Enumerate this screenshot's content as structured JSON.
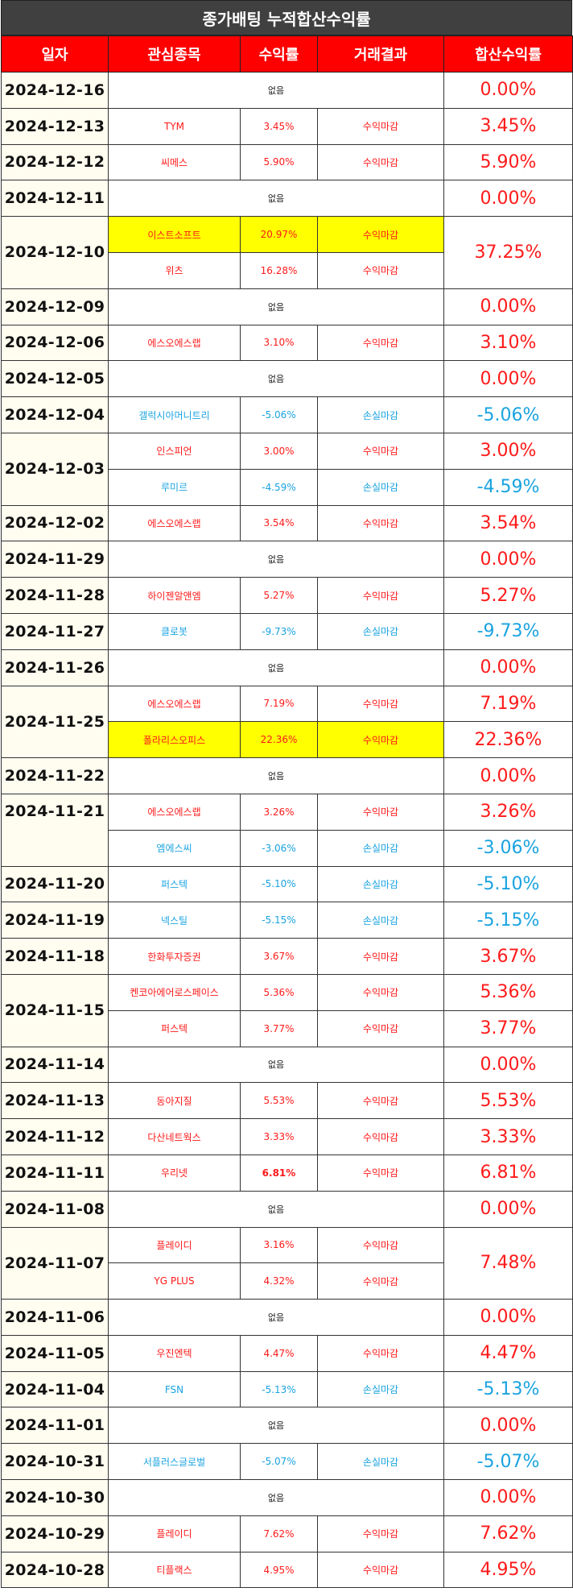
{
  "title": "종가배팅 누적합산수익률",
  "headers": [
    "일자",
    "관심종목",
    "수익률",
    "거래결과",
    "합산수익률"
  ],
  "none_label": "없음",
  "groups": [
    {
      "date": "2024-12-16",
      "total": "0.00%",
      "total_tone": "red",
      "trades": []
    },
    {
      "date": "2024-12-13",
      "total": "3.45%",
      "total_tone": "red",
      "trades": [
        {
          "stock": "TYM",
          "ret": "3.45%",
          "result": "수익마감",
          "tone": "red"
        }
      ]
    },
    {
      "date": "2024-12-12",
      "total": "5.90%",
      "total_tone": "red",
      "trades": [
        {
          "stock": "씨메스",
          "ret": "5.90%",
          "result": "수익마감",
          "tone": "red"
        }
      ]
    },
    {
      "date": "2024-12-11",
      "total": "0.00%",
      "total_tone": "red",
      "trades": []
    },
    {
      "date": "2024-12-10",
      "total": "37.25%",
      "total_tone": "red",
      "trades": [
        {
          "stock": "이스트소프트",
          "ret": "20.97%",
          "result": "수익마감",
          "tone": "red",
          "highlight": true
        },
        {
          "stock": "위츠",
          "ret": "16.28%",
          "result": "수익마감",
          "tone": "red"
        }
      ]
    },
    {
      "date": "2024-12-09",
      "total": "0.00%",
      "total_tone": "red",
      "trades": []
    },
    {
      "date": "2024-12-06",
      "total": "3.10%",
      "total_tone": "red",
      "trades": [
        {
          "stock": "에스오에스랩",
          "ret": "3.10%",
          "result": "수익마감",
          "tone": "red"
        }
      ]
    },
    {
      "date": "2024-12-05",
      "total": "0.00%",
      "total_tone": "red",
      "trades": []
    },
    {
      "date": "2024-12-04",
      "total": "-5.06%",
      "total_tone": "blue",
      "trades": [
        {
          "stock": "갤럭시아머니트리",
          "ret": "-5.06%",
          "result": "손실마감",
          "tone": "blue"
        }
      ]
    },
    {
      "date": "2024-12-03",
      "trades": [
        {
          "stock": "인스피언",
          "ret": "3.00%",
          "result": "수익마감",
          "tone": "red",
          "total": "3.00%"
        },
        {
          "stock": "루미르",
          "ret": "-4.59%",
          "result": "손실마감",
          "tone": "blue",
          "total": "-4.59%"
        }
      ]
    },
    {
      "date": "2024-12-02",
      "total": "3.54%",
      "total_tone": "red",
      "trades": [
        {
          "stock": "에스오에스랩",
          "ret": "3.54%",
          "result": "수익마감",
          "tone": "red"
        }
      ]
    },
    {
      "date": "2024-11-29",
      "total": "0.00%",
      "total_tone": "red",
      "trades": []
    },
    {
      "date": "2024-11-28",
      "total": "5.27%",
      "total_tone": "red",
      "trades": [
        {
          "stock": "하이젠알앤엠",
          "ret": "5.27%",
          "result": "수익마감",
          "tone": "red"
        }
      ]
    },
    {
      "date": "2024-11-27",
      "total": "-9.73%",
      "total_tone": "blue",
      "trades": [
        {
          "stock": "클로봇",
          "ret": "-9.73%",
          "result": "손실마감",
          "tone": "blue"
        }
      ]
    },
    {
      "date": "2024-11-26",
      "total": "0.00%",
      "total_tone": "red",
      "trades": []
    },
    {
      "date": "2024-11-25",
      "trades": [
        {
          "stock": "에스오에스랩",
          "ret": "7.19%",
          "result": "수익마감",
          "tone": "red",
          "total": "7.19%"
        },
        {
          "stock": "폴라리스오피스",
          "ret": "22.36%",
          "result": "수익마감",
          "tone": "red",
          "total": "22.36%",
          "highlight": true
        }
      ]
    },
    {
      "date": "2024-11-22",
      "total": "0.00%",
      "total_tone": "red",
      "trades": []
    },
    {
      "date": "2024-11-21",
      "date_top": true,
      "trades": [
        {
          "stock": "에스오에스랩",
          "ret": "3.26%",
          "result": "수익마감",
          "tone": "red",
          "total": "3.26%"
        },
        {
          "stock": "엠에스씨",
          "ret": "-3.06%",
          "result": "손실마감",
          "tone": "blue",
          "total": "-3.06%"
        }
      ]
    },
    {
      "date": "2024-11-20",
      "total": "-5.10%",
      "total_tone": "blue",
      "trades": [
        {
          "stock": "퍼스텍",
          "ret": "-5.10%",
          "result": "손실마감",
          "tone": "blue"
        }
      ]
    },
    {
      "date": "2024-11-19",
      "total": "-5.15%",
      "total_tone": "blue",
      "trades": [
        {
          "stock": "넥스틸",
          "ret": "-5.15%",
          "result": "손실마감",
          "tone": "blue"
        }
      ]
    },
    {
      "date": "2024-11-18",
      "total": "3.67%",
      "total_tone": "red",
      "trades": [
        {
          "stock": "한화투자증권",
          "ret": "3.67%",
          "result": "수익마감",
          "tone": "red"
        }
      ]
    },
    {
      "date": "2024-11-15",
      "trades": [
        {
          "stock": "켄코아에어로스페이스",
          "ret": "5.36%",
          "result": "수익마감",
          "tone": "red",
          "total": "5.36%"
        },
        {
          "stock": "퍼스텍",
          "ret": "3.77%",
          "result": "수익마감",
          "tone": "red",
          "total": "3.77%"
        }
      ]
    },
    {
      "date": "2024-11-14",
      "total": "0.00%",
      "total_tone": "red",
      "trades": []
    },
    {
      "date": "2024-11-13",
      "total": "5.53%",
      "total_tone": "red",
      "trades": [
        {
          "stock": "동아지질",
          "ret": "5.53%",
          "result": "수익마감",
          "tone": "red"
        }
      ]
    },
    {
      "date": "2024-11-12",
      "total": "3.33%",
      "total_tone": "red",
      "trades": [
        {
          "stock": "다산네트웍스",
          "ret": "3.33%",
          "result": "수익마감",
          "tone": "red"
        }
      ]
    },
    {
      "date": "2024-11-11",
      "total": "6.81%",
      "total_tone": "red",
      "trades": [
        {
          "stock": "우리넷",
          "ret": "6.81%",
          "result": "수익마감",
          "tone": "red",
          "bold": true
        }
      ]
    },
    {
      "date": "2024-11-08",
      "total": "0.00%",
      "total_tone": "red",
      "trades": []
    },
    {
      "date": "2024-11-07",
      "total": "7.48%",
      "total_tone": "red",
      "trades": [
        {
          "stock": "플레이디",
          "ret": "3.16%",
          "result": "수익마감",
          "tone": "red"
        },
        {
          "stock": "YG PLUS",
          "ret": "4.32%",
          "result": "수익마감",
          "tone": "red"
        }
      ]
    },
    {
      "date": "2024-11-06",
      "total": "0.00%",
      "total_tone": "red",
      "trades": []
    },
    {
      "date": "2024-11-05",
      "total": "4.47%",
      "total_tone": "red",
      "trades": [
        {
          "stock": "우진엔텍",
          "ret": "4.47%",
          "result": "수익마감",
          "tone": "red"
        }
      ]
    },
    {
      "date": "2024-11-04",
      "total": "-5.13%",
      "total_tone": "blue",
      "trades": [
        {
          "stock": "FSN",
          "ret": "-5.13%",
          "result": "손실마감",
          "tone": "blue"
        }
      ]
    },
    {
      "date": "2024-11-01",
      "total": "0.00%",
      "total_tone": "red",
      "trades": []
    },
    {
      "date": "2024-10-31",
      "total": "-5.07%",
      "total_tone": "blue",
      "trades": [
        {
          "stock": "서플러스글로벌",
          "ret": "-5.07%",
          "result": "손실마감",
          "tone": "blue"
        }
      ]
    },
    {
      "date": "2024-10-30",
      "total": "0.00%",
      "total_tone": "red",
      "trades": []
    },
    {
      "date": "2024-10-29",
      "total": "7.62%",
      "total_tone": "red",
      "trades": [
        {
          "stock": "플레이디",
          "ret": "7.62%",
          "result": "수익마감",
          "tone": "red"
        }
      ]
    },
    {
      "date": "2024-10-28",
      "total": "4.95%",
      "total_tone": "red",
      "trades": [
        {
          "stock": "티플랙스",
          "ret": "4.95%",
          "result": "수익마감",
          "tone": "red"
        }
      ]
    }
  ]
}
